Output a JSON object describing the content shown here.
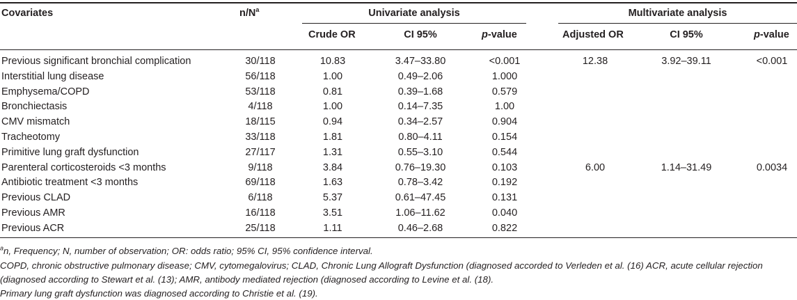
{
  "headers": {
    "covariates": "Covariates",
    "nN_base": "n/N",
    "nN_sup": "a",
    "univariate": "Univariate analysis",
    "multivariate": "Multivariate analysis",
    "crude_or": "Crude OR",
    "ci_uni": "CI 95%",
    "p_uni_italic": "p",
    "p_uni_rest": "-value",
    "adjusted_or": "Adjusted OR",
    "ci_multi": "CI 95%",
    "p_multi_italic": "p",
    "p_multi_rest": "-value"
  },
  "rows": [
    {
      "covariate": "Previous significant bronchial complication",
      "nN": "30/118",
      "crude_or": "10.83",
      "ci": "3.47–33.80",
      "p": "<0.001",
      "adj_or": "12.38",
      "adj_ci": "3.92–39.11",
      "adj_p": "<0.001"
    },
    {
      "covariate": "Interstitial lung disease",
      "nN": "56/118",
      "crude_or": "1.00",
      "ci": "0.49–2.06",
      "p": "1.000",
      "adj_or": "",
      "adj_ci": "",
      "adj_p": ""
    },
    {
      "covariate": "Emphysema/COPD",
      "nN": "53/118",
      "crude_or": "0.81",
      "ci": "0.39–1.68",
      "p": "0.579",
      "adj_or": "",
      "adj_ci": "",
      "adj_p": ""
    },
    {
      "covariate": "Bronchiectasis",
      "nN": "4/118",
      "crude_or": "1.00",
      "ci": "0.14–7.35",
      "p": "1.00",
      "adj_or": "",
      "adj_ci": "",
      "adj_p": ""
    },
    {
      "covariate": "CMV mismatch",
      "nN": "18/115",
      "crude_or": "0.94",
      "ci": "0.34–2.57",
      "p": "0.904",
      "adj_or": "",
      "adj_ci": "",
      "adj_p": ""
    },
    {
      "covariate": "Tracheotomy",
      "nN": "33/118",
      "crude_or": "1.81",
      "ci": "0.80–4.11",
      "p": "0.154",
      "adj_or": "",
      "adj_ci": "",
      "adj_p": ""
    },
    {
      "covariate": "Primitive lung graft dysfunction",
      "nN": "27/117",
      "crude_or": "1.31",
      "ci": "0.55–3.10",
      "p": "0.544",
      "adj_or": "",
      "adj_ci": "",
      "adj_p": ""
    },
    {
      "covariate": "Parenteral corticosteroids <3 months",
      "nN": "9/118",
      "crude_or": "3.84",
      "ci": "0.76–19.30",
      "p": "0.103",
      "adj_or": "6.00",
      "adj_ci": "1.14–31.49",
      "adj_p": "0.0034"
    },
    {
      "covariate": "Antibiotic treatment <3 months",
      "nN": "69/118",
      "crude_or": "1.63",
      "ci": "0.78–3.42",
      "p": "0.192",
      "adj_or": "",
      "adj_ci": "",
      "adj_p": ""
    },
    {
      "covariate": "Previous CLAD",
      "nN": "6/118",
      "crude_or": "5.37",
      "ci": "0.61–47.45",
      "p": "0.131",
      "adj_or": "",
      "adj_ci": "",
      "adj_p": ""
    },
    {
      "covariate": "Previous AMR",
      "nN": "16/118",
      "crude_or": "3.51",
      "ci": "1.06–11.62",
      "p": "0.040",
      "adj_or": "",
      "adj_ci": "",
      "adj_p": ""
    },
    {
      "covariate": "Previous ACR",
      "nN": "25/118",
      "crude_or": "1.11",
      "ci": "0.46–2.68",
      "p": "0.822",
      "adj_or": "",
      "adj_ci": "",
      "adj_p": ""
    }
  ],
  "footnotes": {
    "f1_sup": "a",
    "f1": "n, Frequency; N, number of observation; OR: odds ratio; 95% CI, 95% confidence interval.",
    "f2": "COPD, chronic obstructive pulmonary disease; CMV, cytomegalovirus; CLAD, Chronic Lung Allograft Dysfunction (diagnosed accorded to Verleden et al. (16) ACR, acute cellular rejection",
    "f3": "(diagnosed according to Stewart et al. (13); AMR, antibody mediated rejection (diagnosed according to Levine et al. (18).",
    "f4": "Primary lung graft dysfunction was diagnosed according to Christie et al. (19)."
  }
}
